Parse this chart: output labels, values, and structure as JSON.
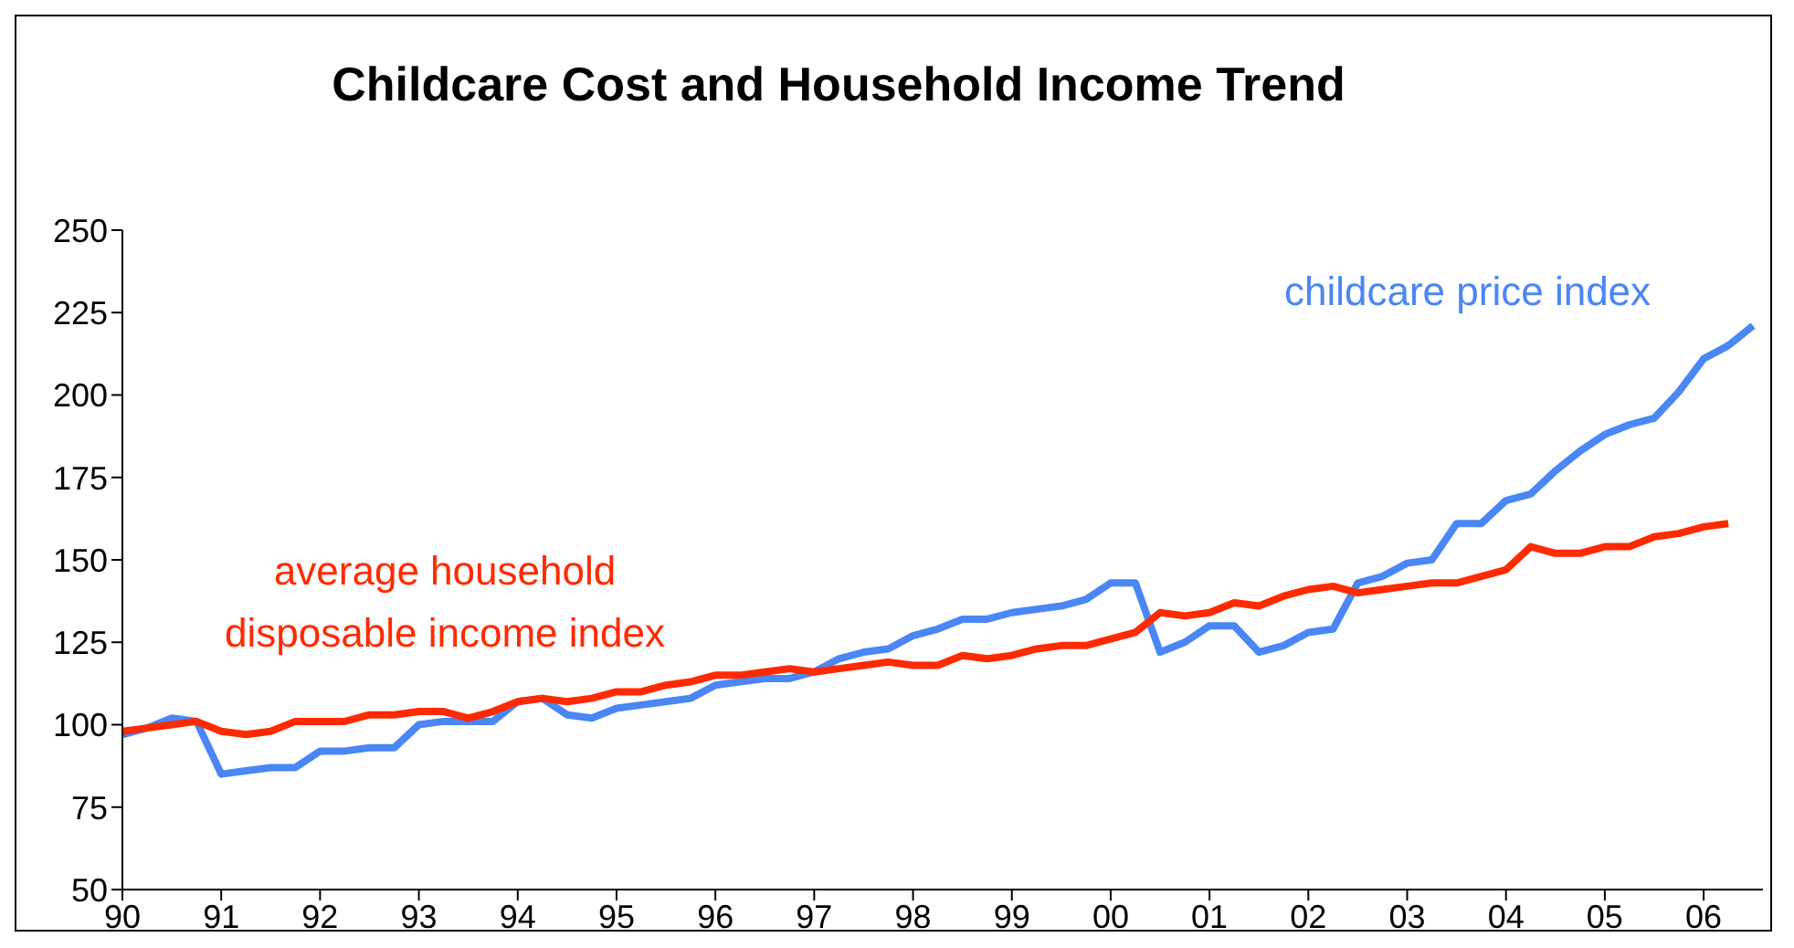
{
  "chart_data": {
    "type": "line",
    "title": "Childcare Cost and Household Income Trend",
    "x": [
      1990,
      1990.25,
      1990.5,
      1990.75,
      1991,
      1991.25,
      1991.5,
      1991.75,
      1992,
      1992.25,
      1992.5,
      1992.75,
      1993,
      1993.25,
      1993.5,
      1993.75,
      1994,
      1994.25,
      1994.5,
      1994.75,
      1995,
      1995.25,
      1995.5,
      1995.75,
      1996,
      1996.25,
      1996.5,
      1996.75,
      1997,
      1997.25,
      1997.5,
      1997.75,
      1998,
      1998.25,
      1998.5,
      1998.75,
      1999,
      1999.25,
      1999.5,
      1999.75,
      2000,
      2000.25,
      2000.5,
      2000.75,
      2001,
      2001.25,
      2001.5,
      2001.75,
      2002,
      2002.25,
      2002.5,
      2002.75,
      2003,
      2003.25,
      2003.5,
      2003.75,
      2004,
      2004.25,
      2004.5,
      2004.75,
      2005,
      2005.25,
      2005.5,
      2005.75,
      2006,
      2006.25,
      2006.5
    ],
    "series": [
      {
        "name": "childcare price index",
        "color": "#4a86f5",
        "values": [
          97,
          99,
          102,
          101,
          85,
          86,
          87,
          87,
          92,
          92,
          93,
          93,
          100,
          101,
          101,
          101,
          107,
          108,
          103,
          102,
          105,
          106,
          107,
          108,
          112,
          113,
          114,
          114,
          116,
          120,
          122,
          123,
          127,
          129,
          132,
          132,
          134,
          135,
          136,
          138,
          143,
          143,
          122,
          125,
          130,
          130,
          122,
          124,
          128,
          129,
          143,
          145,
          149,
          150,
          161,
          161,
          168,
          170,
          177,
          183,
          188,
          191,
          193,
          201,
          211,
          215,
          221
        ]
      },
      {
        "name": "average household disposable income index",
        "color": "#ff2a00",
        "values": [
          98,
          99,
          100,
          101,
          98,
          97,
          98,
          101,
          101,
          101,
          103,
          103,
          104,
          104,
          102,
          104,
          107,
          108,
          107,
          108,
          110,
          110,
          112,
          113,
          115,
          115,
          116,
          117,
          116,
          117,
          118,
          119,
          118,
          118,
          121,
          120,
          121,
          123,
          124,
          124,
          126,
          128,
          134,
          133,
          134,
          137,
          136,
          139,
          141,
          142,
          140,
          141,
          142,
          143,
          143,
          145,
          147,
          154,
          152,
          152,
          154,
          154,
          157,
          158,
          160,
          161,
          null
        ]
      }
    ],
    "xlim": [
      1990,
      2006.6
    ],
    "xticks": [
      {
        "value": 1990,
        "label": "90"
      },
      {
        "value": 1991,
        "label": "91"
      },
      {
        "value": 1992,
        "label": "92"
      },
      {
        "value": 1993,
        "label": "93"
      },
      {
        "value": 1994,
        "label": "94"
      },
      {
        "value": 1995,
        "label": "95"
      },
      {
        "value": 1996,
        "label": "96"
      },
      {
        "value": 1997,
        "label": "97"
      },
      {
        "value": 1998,
        "label": "98"
      },
      {
        "value": 1999,
        "label": "99"
      },
      {
        "value": 2000,
        "label": "00"
      },
      {
        "value": 2001,
        "label": "01"
      },
      {
        "value": 2002,
        "label": "02"
      },
      {
        "value": 2003,
        "label": "03"
      },
      {
        "value": 2004,
        "label": "04"
      },
      {
        "value": 2005,
        "label": "05"
      },
      {
        "value": 2006,
        "label": "06"
      }
    ],
    "ylim": [
      50,
      250
    ],
    "yticks": [
      50,
      75,
      100,
      125,
      150,
      175,
      200,
      225,
      250
    ],
    "marker": "none",
    "line_style": "solid"
  }
}
